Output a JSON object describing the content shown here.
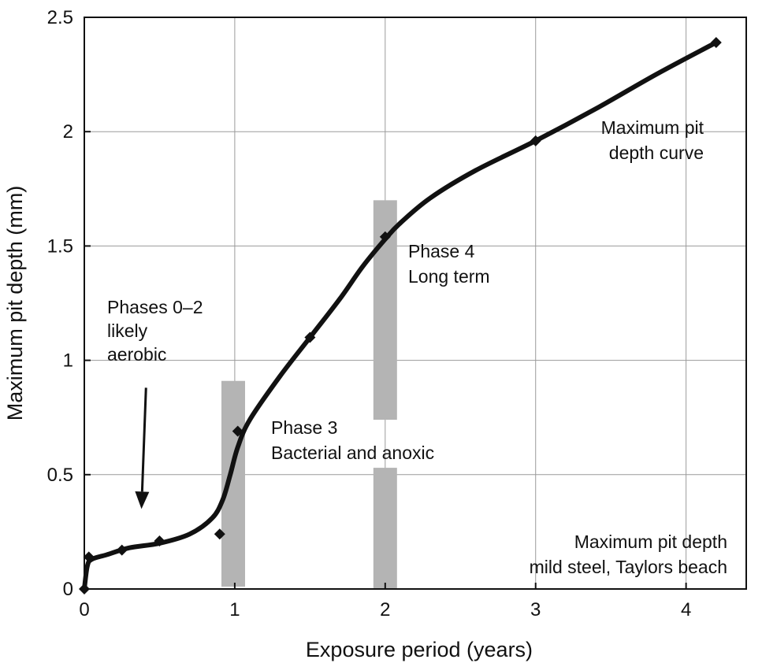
{
  "chart_data": {
    "type": "line",
    "title": "",
    "xlabel": "Exposure period (years)",
    "ylabel": "Maximum pit depth (mm)",
    "xlim": [
      0,
      4.4
    ],
    "ylim": [
      0,
      2.5
    ],
    "xticks": [
      0,
      1,
      2,
      3,
      4
    ],
    "yticks": [
      0,
      0.5,
      1,
      1.5,
      2,
      2.5
    ],
    "xtick_labels": [
      "0",
      "1",
      "2",
      "3",
      "4"
    ],
    "ytick_labels": [
      "0",
      "0.5",
      "1",
      "1.5",
      "2",
      "2.5"
    ],
    "grid": true,
    "series": [
      {
        "kind": "markers",
        "marker": "diamond",
        "x": [
          0,
          0.03,
          0.25,
          0.5,
          0.9,
          1.02,
          1.5,
          2.0,
          3.0,
          4.2
        ],
        "y": [
          0.0,
          0.14,
          0.17,
          0.21,
          0.24,
          0.69,
          1.1,
          1.54,
          1.96,
          2.39
        ]
      },
      {
        "kind": "curve",
        "x": [
          0,
          0.02,
          0.05,
          0.15,
          0.3,
          0.5,
          0.7,
          0.85,
          0.92,
          0.97,
          1.02,
          1.1,
          1.3,
          1.5,
          1.7,
          1.85,
          2.0,
          2.1,
          2.3,
          2.6,
          3.0,
          3.4,
          3.8,
          4.2
        ],
        "y": [
          0.0,
          0.1,
          0.13,
          0.15,
          0.18,
          0.2,
          0.24,
          0.31,
          0.39,
          0.5,
          0.62,
          0.74,
          0.93,
          1.1,
          1.27,
          1.41,
          1.53,
          1.6,
          1.71,
          1.83,
          1.96,
          2.1,
          2.25,
          2.39
        ]
      }
    ],
    "phase_bands": [
      {
        "x": 0.99,
        "y0": 0.01,
        "y1": 0.91
      },
      {
        "x": 2.0,
        "y0": 0.74,
        "y1": 1.7
      },
      {
        "x": 2.0,
        "y0": 0.0,
        "y1": 0.53
      }
    ],
    "annotations": [
      {
        "lines": [
          "Phases 0–2",
          "likely",
          "aerobic"
        ]
      },
      {
        "lines": [
          "Phase 3",
          "Bacterial and anoxic"
        ]
      },
      {
        "lines": [
          "Phase 4",
          "Long term"
        ]
      },
      {
        "lines": [
          "Maximum pit",
          "depth curve"
        ]
      },
      {
        "lines": [
          "Maximum pit depth",
          "mild steel, Taylors beach"
        ]
      }
    ],
    "arrow": {
      "from": [
        0.41,
        0.88
      ],
      "to": [
        0.38,
        0.35
      ]
    }
  },
  "colors": {
    "line": "#111111",
    "grid": "#9a9a9a",
    "band": "#b4b4b4",
    "frame": "#111111"
  }
}
